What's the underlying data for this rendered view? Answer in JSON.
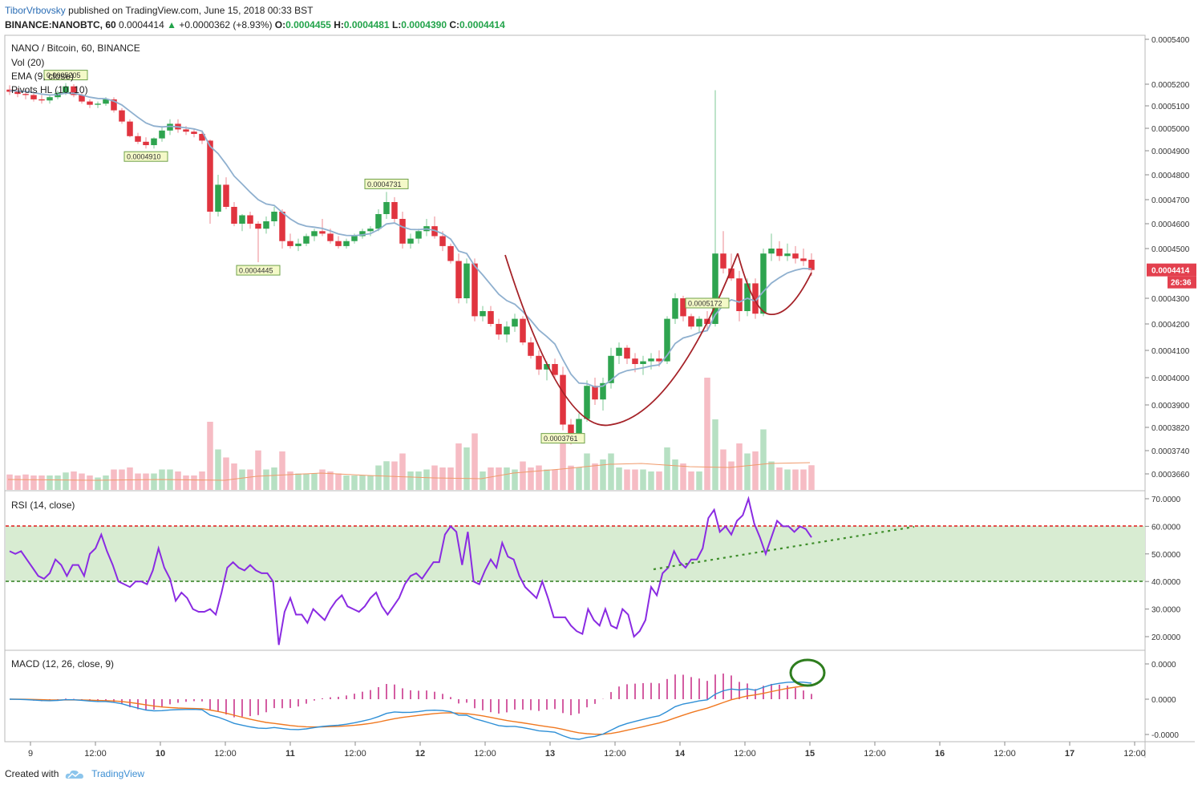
{
  "header": {
    "author": "TiborVrbovsky",
    "published": "published on TradingView.com, June 15, 2018 00:33 BST",
    "symbol": "BINANCE:NANOBTC, 60",
    "last": "0.0004414",
    "change": "+0.0000362 (+8.93%)",
    "o_label": "O:",
    "o": "0.0004455",
    "h_label": "H:",
    "h": "0.0004481",
    "l_label": "L:",
    "l": "0.0004390",
    "c_label": "C:",
    "c": "0.0004414"
  },
  "legend": {
    "title": "NANO / Bitcoin, 60, BINANCE",
    "vol": "Vol (20)",
    "ema": "EMA (9, close)",
    "pivots": "Pivots HL (10, 10)"
  },
  "price_axis": {
    "ticks": [
      "0.0005400",
      "0.0005200",
      "0.0005100",
      "0.0005000",
      "0.0004900",
      "0.0004800",
      "0.0004700",
      "0.0004600",
      "0.0004500",
      "0.0004300",
      "0.0004200",
      "0.0004100",
      "0.0004000",
      "0.0003900",
      "0.0003820",
      "0.0003740",
      "0.0003660"
    ],
    "tick_values": [
      0.00054,
      0.00052,
      0.00051,
      0.0005,
      0.00049,
      0.00048,
      0.00047,
      0.00046,
      0.00045,
      0.00043,
      0.00042,
      0.00041,
      0.0004,
      0.00039,
      0.000382,
      0.000374,
      0.000366
    ],
    "last_price_label": "0.0004414",
    "countdown": "26:36",
    "last_color": "#e3404e"
  },
  "pivots": [
    {
      "label": "0.0005205",
      "type": "high"
    },
    {
      "label": "0.0004910",
      "type": "low"
    },
    {
      "label": "0.0004445",
      "type": "low"
    },
    {
      "label": "0.0004731",
      "type": "high"
    },
    {
      "label": "0.0003761",
      "type": "low"
    },
    {
      "label": "0.0005172",
      "type": "high"
    }
  ],
  "rsi": {
    "title": "RSI (14, close)",
    "ticks": [
      "70.0000",
      "60.0000",
      "50.0000",
      "40.0000",
      "30.0000",
      "20.0000"
    ],
    "tick_values": [
      70,
      60,
      50,
      40,
      30,
      20
    ],
    "upper_band": 60,
    "lower_band": 40,
    "band_color": "#d8ecd2",
    "line_color": "#8a2be2",
    "values": [
      51,
      50,
      51,
      48,
      45,
      42,
      41,
      43,
      48,
      46,
      42,
      46,
      46,
      42,
      50,
      52,
      57,
      51,
      46,
      40,
      39,
      38,
      40,
      40,
      39,
      44,
      52,
      45,
      41,
      33,
      36,
      34,
      30,
      29,
      29,
      30,
      28,
      36,
      45,
      47,
      45,
      44,
      46,
      44,
      43,
      43,
      40,
      17,
      29,
      34,
      28,
      28,
      25,
      30,
      28,
      26,
      30,
      33,
      35,
      31,
      30,
      29,
      31,
      34,
      36,
      31,
      28,
      31,
      34,
      39,
      42,
      43,
      41,
      44,
      47,
      47,
      57,
      60,
      58,
      46,
      58,
      40,
      39,
      44,
      48,
      45,
      54,
      49,
      48,
      42,
      38,
      36,
      34,
      40,
      34,
      27,
      27,
      27,
      24,
      22,
      21,
      30,
      26,
      24,
      30,
      24,
      23,
      30,
      28,
      20,
      22,
      26,
      38,
      35,
      43,
      45,
      51,
      47,
      45,
      48,
      48,
      52,
      63,
      66,
      58,
      60,
      57,
      62,
      64,
      70,
      61,
      56,
      50,
      56,
      62,
      60,
      60,
      58,
      60,
      59,
      56
    ]
  },
  "macd": {
    "title": "MACD (12, 26, close, 9)",
    "ticks": [
      "0.0000",
      "0.0000",
      "-0.0000"
    ],
    "tick_values": [
      4.5e-06,
      0,
      -4.5e-06
    ],
    "macd_color": "#2e8fd6",
    "signal_color": "#f07820",
    "hist_color": "#c2187b",
    "highlight_color": "#2e7d1e"
  },
  "time_axis": {
    "labels": [
      "9",
      "12:00",
      "10",
      "12:00",
      "11",
      "12:00",
      "12",
      "12:00",
      "13",
      "12:00",
      "14",
      "12:00",
      "15",
      "12:00",
      "16",
      "12:00",
      "17",
      "12:00"
    ],
    "bold": [
      false,
      false,
      true,
      false,
      true,
      false,
      true,
      false,
      true,
      false,
      true,
      false,
      true,
      false,
      true,
      false,
      true,
      false
    ]
  },
  "chart_data": {
    "type": "candlestick",
    "series": [
      {
        "name": "NANO / Bitcoin, 60, BINANCE",
        "unit": "BTC"
      },
      {
        "name": "Vol (20)"
      },
      {
        "name": "EMA (9, close)",
        "color": "#8fb0cf"
      },
      {
        "name": "RSI (14, close)"
      },
      {
        "name": "MACD (12, 26, close, 9)"
      }
    ],
    "ohlc": [
      [
        0.0005175,
        0.0005195,
        0.000515,
        0.0005165
      ],
      [
        0.0005165,
        0.000518,
        0.000514,
        0.0005155
      ],
      [
        0.0005155,
        0.0005175,
        0.000513,
        0.000515
      ],
      [
        0.000515,
        0.000516,
        0.000512,
        0.000513
      ],
      [
        0.000513,
        0.000515,
        0.000511,
        0.0005125
      ],
      [
        0.0005125,
        0.000515,
        0.000511,
        0.000514
      ],
      [
        0.000514,
        0.000517,
        0.000513,
        0.000516
      ],
      [
        0.000516,
        0.0005205,
        0.000515,
        0.000519
      ],
      [
        0.000519,
        0.00052,
        0.000514,
        0.000515
      ],
      [
        0.000515,
        0.000516,
        0.000511,
        0.000512
      ],
      [
        0.000512,
        0.000513,
        0.000509,
        0.0005105
      ],
      [
        0.0005105,
        0.000512,
        0.000509,
        0.000511
      ],
      [
        0.000511,
        0.000514,
        0.00051,
        0.000513
      ],
      [
        0.000513,
        0.000514,
        0.000507,
        0.000508
      ],
      [
        0.000508,
        0.000509,
        0.000502,
        0.000503
      ],
      [
        0.000503,
        0.000504,
        0.000496,
        0.0004965
      ],
      [
        0.0004965,
        0.000498,
        0.000493,
        0.000494
      ],
      [
        0.000494,
        0.000496,
        0.000491,
        0.0004925
      ],
      [
        0.0004925,
        0.000496,
        0.000491,
        0.0004955
      ],
      [
        0.0004955,
        0.000501,
        0.000494,
        0.000499
      ],
      [
        0.000499,
        0.000504,
        0.000497,
        0.000502
      ],
      [
        0.000502,
        0.000504,
        0.000498,
        0.0004995
      ],
      [
        0.0004995,
        0.000501,
        0.000497,
        0.0004985
      ],
      [
        0.0004985,
        0.0005,
        0.000496,
        0.0004975
      ],
      [
        0.0004975,
        0.000499,
        0.000493,
        0.0004945
      ],
      [
        0.0004945,
        0.000495,
        0.00046,
        0.000465
      ],
      [
        0.000465,
        0.00048,
        0.000463,
        0.000476
      ],
      [
        0.000476,
        0.000479,
        0.000466,
        0.000467
      ],
      [
        0.000467,
        0.000469,
        0.000459,
        0.00046
      ],
      [
        0.00046,
        0.000464,
        0.000457,
        0.0004635
      ],
      [
        0.0004635,
        0.000465,
        0.000458,
        0.00046
      ],
      [
        0.00046,
        0.000461,
        0.0004445,
        0.000458
      ],
      [
        0.000458,
        0.000463,
        0.000456,
        0.000461
      ],
      [
        0.000461,
        0.000467,
        0.000459,
        0.000465
      ],
      [
        0.000465,
        0.000466,
        0.00045,
        0.000453
      ],
      [
        0.000453,
        0.000456,
        0.00045,
        0.000451
      ],
      [
        0.000451,
        0.000454,
        0.000449,
        0.000452
      ],
      [
        0.000452,
        0.000456,
        0.000451,
        0.000455
      ],
      [
        0.000455,
        0.000458,
        0.000453,
        0.000457
      ],
      [
        0.000457,
        0.000462,
        0.000455,
        0.000456
      ],
      [
        0.000456,
        0.000458,
        0.000452,
        0.000453
      ],
      [
        0.000453,
        0.000455,
        0.00045,
        0.000451
      ],
      [
        0.000451,
        0.000454,
        0.00045,
        0.000453
      ],
      [
        0.000453,
        0.000456,
        0.000452,
        0.000455
      ],
      [
        0.000455,
        0.000458,
        0.000454,
        0.000457
      ],
      [
        0.000457,
        0.000459,
        0.000455,
        0.000458
      ],
      [
        0.000458,
        0.000466,
        0.000457,
        0.000464
      ],
      [
        0.000464,
        0.0004731,
        0.000462,
        0.000469
      ],
      [
        0.000469,
        0.000471,
        0.00046,
        0.000462
      ],
      [
        0.000462,
        0.000465,
        0.00045,
        0.000452
      ],
      [
        0.000452,
        0.000456,
        0.00045,
        0.000454
      ],
      [
        0.000454,
        0.000458,
        0.000452,
        0.000457
      ],
      [
        0.000457,
        0.000462,
        0.000455,
        0.000459
      ],
      [
        0.000459,
        0.000463,
        0.000454,
        0.000455
      ],
      [
        0.000455,
        0.000457,
        0.000449,
        0.000451
      ],
      [
        0.000451,
        0.000452,
        0.000444,
        0.000445
      ],
      [
        0.000445,
        0.000448,
        0.000428,
        0.00043
      ],
      [
        0.00043,
        0.000446,
        0.000428,
        0.000444
      ],
      [
        0.000444,
        0.000446,
        0.000421,
        0.000423
      ],
      [
        0.000423,
        0.000427,
        0.000421,
        0.000425
      ],
      [
        0.000425,
        0.000427,
        0.000419,
        0.00042
      ],
      [
        0.00042,
        0.000422,
        0.000414,
        0.000416
      ],
      [
        0.000416,
        0.000421,
        0.000413,
        0.000419
      ],
      [
        0.000419,
        0.000424,
        0.000417,
        0.000422
      ],
      [
        0.000422,
        0.000423,
        0.000412,
        0.000413
      ],
      [
        0.000413,
        0.000415,
        0.000407,
        0.000408
      ],
      [
        0.000408,
        0.00041,
        0.000401,
        0.000403
      ],
      [
        0.000403,
        0.000406,
        0.000399,
        0.000405
      ],
      [
        0.000405,
        0.000407,
        0.0004,
        0.000401
      ],
      [
        0.000401,
        0.000404,
        0.000381,
        0.000383
      ],
      [
        0.000383,
        0.000385,
        0.0003761,
        0.00038
      ],
      [
        0.00038,
        0.000387,
        0.000379,
        0.000385
      ],
      [
        0.000385,
        0.000399,
        0.000384,
        0.000397
      ],
      [
        0.000397,
        0.0004,
        0.00039,
        0.000392
      ],
      [
        0.000392,
        0.0004,
        0.000388,
        0.000398
      ],
      [
        0.000398,
        0.000411,
        0.000396,
        0.000408
      ],
      [
        0.000408,
        0.000413,
        0.000405,
        0.000411
      ],
      [
        0.000411,
        0.000412,
        0.000405,
        0.000407
      ],
      [
        0.000407,
        0.000409,
        0.000402,
        0.000405
      ],
      [
        0.000405,
        0.000408,
        0.000401,
        0.000406
      ],
      [
        0.000406,
        0.000409,
        0.000403,
        0.000407
      ],
      [
        0.000407,
        0.00041,
        0.000404,
        0.000406
      ],
      [
        0.000406,
        0.000423,
        0.000405,
        0.000422
      ],
      [
        0.000422,
        0.000432,
        0.00042,
        0.00043
      ],
      [
        0.00043,
        0.000431,
        0.000421,
        0.000423
      ],
      [
        0.000423,
        0.000424,
        0.000418,
        0.000419
      ],
      [
        0.000419,
        0.000423,
        0.000417,
        0.000422
      ],
      [
        0.000422,
        0.000425,
        0.000418,
        0.00042
      ],
      [
        0.00042,
        0.0005172,
        0.000419,
        0.000448
      ],
      [
        0.000448,
        0.000457,
        0.00044,
        0.000442
      ],
      [
        0.000442,
        0.000448,
        0.000437,
        0.000438
      ],
      [
        0.000438,
        0.000441,
        0.000421,
        0.000425
      ],
      [
        0.000425,
        0.000438,
        0.000423,
        0.000436
      ],
      [
        0.000436,
        0.000438,
        0.000422,
        0.000424
      ],
      [
        0.000424,
        0.00045,
        0.000423,
        0.000448
      ],
      [
        0.000448,
        0.000456,
        0.000445,
        0.00045
      ],
      [
        0.00045,
        0.000453,
        0.000445,
        0.000447
      ],
      [
        0.000447,
        0.000452,
        0.000445,
        0.000448
      ],
      [
        0.000448,
        0.000451,
        0.000444,
        0.000446
      ],
      [
        0.000446,
        0.00045,
        0.000443,
        0.000445
      ],
      [
        0.0004455,
        0.0004481,
        0.000439,
        0.0004414
      ]
    ],
    "ema": [
      0.000517,
      0.0005168,
      0.0005166,
      0.0005161,
      0.0005154,
      0.000515,
      0.0005152,
      0.0005159,
      0.0005158,
      0.000515,
      0.000514,
      0.0005134,
      0.0005133,
      0.0005122,
      0.0005104,
      0.0005076,
      0.0005049,
      0.0005024,
      0.000501,
      0.0005006,
      0.0005009,
      0.0005006,
      0.0005002,
      0.0004997,
      0.0004987,
      0.000492,
      0.0004888,
      0.0004844,
      0.0004795,
      0.0004763,
      0.000473,
      0.00047,
      0.0004682,
      0.0004676,
      0.0004647,
      0.000462,
      0.00046,
      0.000459,
      0.0004586,
      0.0004581,
      0.0004571,
      0.0004559,
      0.0004553,
      0.0004552,
      0.0004555,
      0.000456,
      0.0004576,
      0.0004599,
      0.0004603,
      0.0004587,
      0.0004577,
      0.0004576,
      0.0004579,
      0.0004573,
      0.000456,
      0.0004538,
      0.000449,
      0.000448,
      0.000443,
      0.0004394,
      0.0004355,
      0.0004316,
      0.0004291,
      0.0004277,
      0.0004248,
      0.0004214,
      0.0004177,
      0.0004152,
      0.0004124,
      0.0004066,
      0.0004013,
      0.000398,
      0.0003978,
      0.0003966,
      0.0003969,
      0.0003991,
      0.0004015,
      0.0004026,
      0.0004031,
      0.0004036,
      0.0004043,
      0.0004047,
      0.0004082,
      0.0004126,
      0.0004147,
      0.0004155,
      0.0004168,
      0.0004175,
      0.0004236,
      0.0004273,
      0.0004294,
      0.0004285,
      0.00043,
      0.0004289,
      0.0004327,
      0.0004361,
      0.0004383,
      0.0004402,
      0.0004413,
      0.000442,
      0.0004418
    ]
  }
}
